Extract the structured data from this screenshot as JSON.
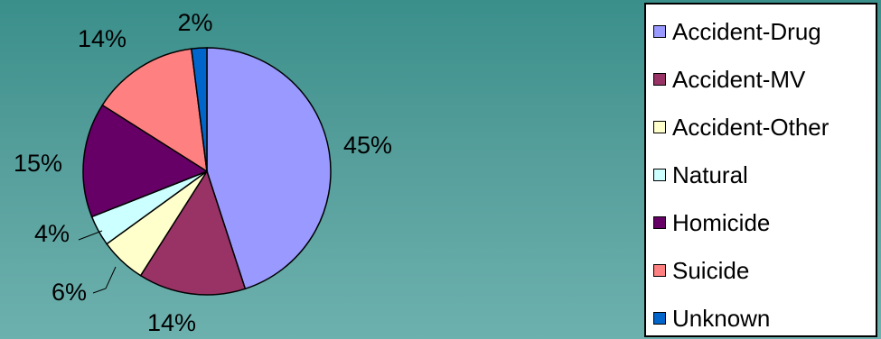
{
  "chart_data": {
    "type": "pie",
    "title": "",
    "start_angle_deg": 0,
    "direction": "clockwise",
    "slices": [
      {
        "label": "Accident-Drug",
        "value": 45,
        "display": "45%",
        "color": "#9999ff"
      },
      {
        "label": "Accident-MV",
        "value": 14,
        "display": "14%",
        "color": "#993366"
      },
      {
        "label": "Accident-Other",
        "value": 6,
        "display": "6%",
        "color": "#ffffcc"
      },
      {
        "label": "Natural",
        "value": 4,
        "display": "4%",
        "color": "#ccffff"
      },
      {
        "label": "Homicide",
        "value": 15,
        "display": "15%",
        "color": "#660066"
      },
      {
        "label": "Suicide",
        "value": 14,
        "display": "14%",
        "color": "#ff8080"
      },
      {
        "label": "Unknown",
        "value": 2,
        "display": "2%",
        "color": "#0066cc"
      }
    ],
    "legend_position": "right"
  }
}
